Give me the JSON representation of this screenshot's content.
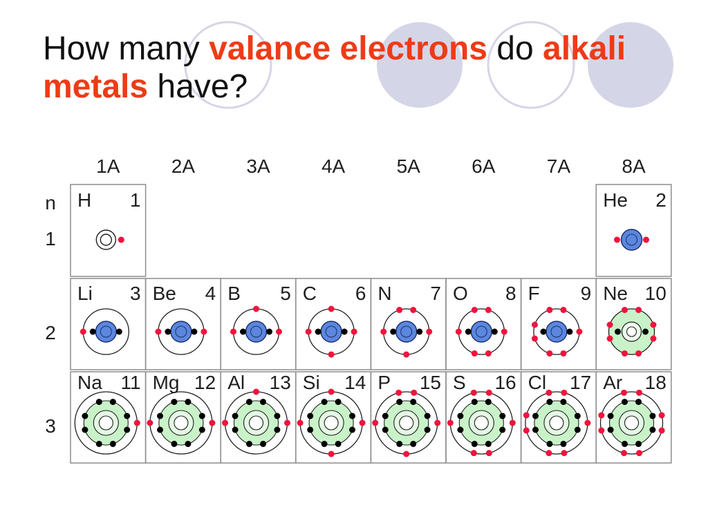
{
  "title": {
    "text_1": "How many ",
    "highlight_1": "valance electrons",
    "text_2": " do ",
    "highlight_2": "alkali",
    "highlight_3": "metals",
    "text_3": " have?"
  },
  "colors": {
    "title_highlight": "#ee3b16",
    "decor_circles": "#d5d5e8",
    "filled_first_shell": "#5b87dd",
    "filled_second_shell": "#c9f2c9",
    "valence_electron": "#f0143c",
    "inner_electron": "#000000"
  },
  "table": {
    "shell_header": "n",
    "group_headers": [
      "1A",
      "2A",
      "3A",
      "4A",
      "5A",
      "6A",
      "7A",
      "8A"
    ],
    "periods": [
      {
        "n": "1",
        "cells": [
          {
            "symbol": "H",
            "number": "1",
            "valence_electrons": 1
          },
          null,
          null,
          null,
          null,
          null,
          null,
          {
            "symbol": "He",
            "number": "2",
            "valence_electrons": 2
          }
        ]
      },
      {
        "n": "2",
        "cells": [
          {
            "symbol": "Li",
            "number": "3",
            "valence_electrons": 1
          },
          {
            "symbol": "Be",
            "number": "4",
            "valence_electrons": 2
          },
          {
            "symbol": "B",
            "number": "5",
            "valence_electrons": 3
          },
          {
            "symbol": "C",
            "number": "6",
            "valence_electrons": 4
          },
          {
            "symbol": "N",
            "number": "7",
            "valence_electrons": 5
          },
          {
            "symbol": "O",
            "number": "8",
            "valence_electrons": 6
          },
          {
            "symbol": "F",
            "number": "9",
            "valence_electrons": 7
          },
          {
            "symbol": "Ne",
            "number": "10",
            "valence_electrons": 8
          }
        ]
      },
      {
        "n": "3",
        "cells": [
          {
            "symbol": "Na",
            "number": "11",
            "valence_electrons": 1
          },
          {
            "symbol": "Mg",
            "number": "12",
            "valence_electrons": 2
          },
          {
            "symbol": "Al",
            "number": "13",
            "valence_electrons": 3
          },
          {
            "symbol": "Si",
            "number": "14",
            "valence_electrons": 4
          },
          {
            "symbol": "P",
            "number": "15",
            "valence_electrons": 5
          },
          {
            "symbol": "S",
            "number": "16",
            "valence_electrons": 6
          },
          {
            "symbol": "Cl",
            "number": "17",
            "valence_electrons": 7
          },
          {
            "symbol": "Ar",
            "number": "18",
            "valence_electrons": 8
          }
        ]
      }
    ]
  }
}
